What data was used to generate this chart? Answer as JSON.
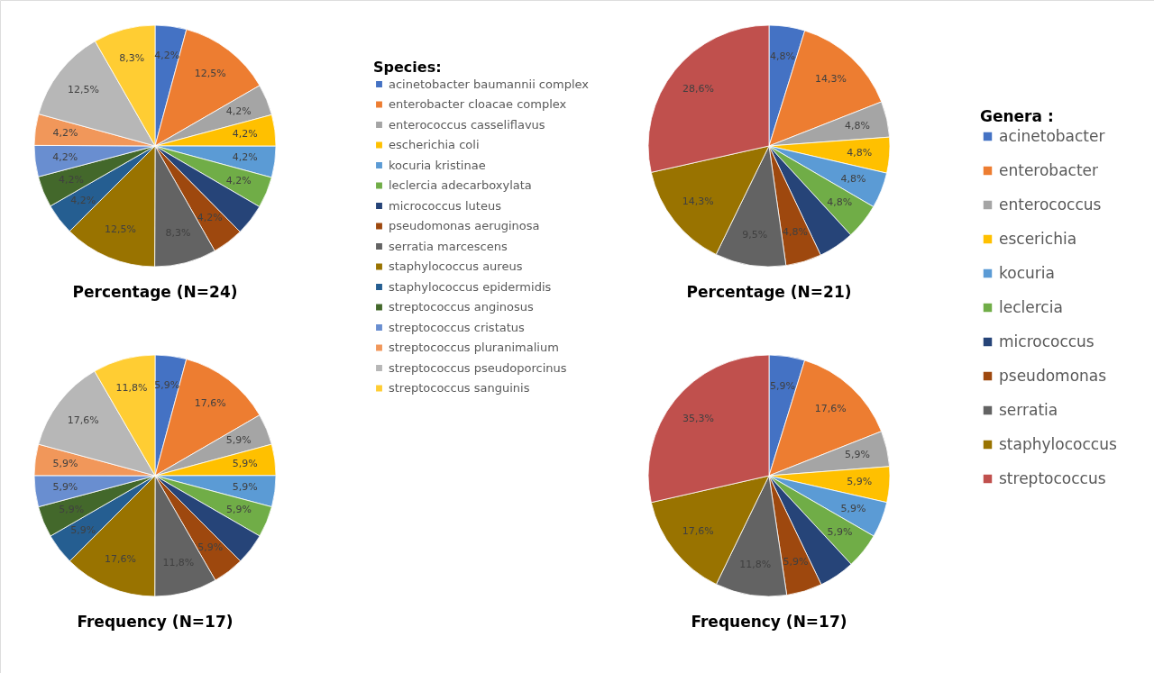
{
  "chart_data": [
    {
      "type": "pie",
      "title": "Percentage (N=24)",
      "legend_title": "Species:",
      "legend": "right",
      "categories": [
        "acinetobacter baumannii complex",
        "enterobacter cloacae complex",
        "enterococcus casseliflavus",
        "escherichia coli",
        "kocuria kristinae",
        "leclercia adecarboxylata",
        "micrococcus luteus",
        "pseudomonas aeruginosa",
        "serratia marcescens",
        "staphylococcus aureus",
        "staphylococcus epidermidis",
        "streptococcus anginosus",
        "streptococcus cristatus",
        "streptococcus pluranimalium",
        "streptococcus pseudoporcinus",
        "streptococcus sanguinis"
      ],
      "values": [
        4.2,
        12.5,
        4.2,
        4.2,
        4.2,
        4.2,
        4.2,
        4.2,
        8.3,
        12.5,
        4.2,
        4.2,
        4.2,
        4.2,
        12.5,
        8.3
      ],
      "value_labels": [
        "4,2%",
        "12,5%",
        "4,2%",
        "4,2%",
        "4,2%",
        "4,2%",
        null,
        "4,2%",
        "8,3%",
        "12,5%",
        "4,2%",
        "4,2%",
        "4,2%",
        "4,2%",
        "12,5%",
        "8,3%"
      ],
      "colors": [
        "#4472c4",
        "#ed7d31",
        "#a5a5a5",
        "#ffc000",
        "#5b9bd5",
        "#70ad47",
        "#264478",
        "#9e480e",
        "#636363",
        "#997300",
        "#255e91",
        "#43682b",
        "#698ed0",
        "#f1975a",
        "#b7b7b7",
        "#ffcd33"
      ]
    },
    {
      "type": "pie",
      "title": "Percentage (N=21)",
      "legend_title": "Genera :",
      "legend": "right",
      "categories": [
        "acinetobacter",
        "enterobacter",
        "enterococcus",
        "escerichia",
        "kocuria",
        "leclercia",
        "micrococcus",
        "pseudomonas",
        "serratia",
        "staphylococcus",
        "streptococcus"
      ],
      "values": [
        4.8,
        14.3,
        4.8,
        4.8,
        4.8,
        4.8,
        4.8,
        4.8,
        9.5,
        14.3,
        28.6
      ],
      "value_labels": [
        "4,8%",
        "14,3%",
        "4,8%",
        "4,8%",
        "4,8%",
        "4,8%",
        null,
        "4,8%",
        "9,5%",
        "14,3%",
        "28,6%"
      ],
      "colors": [
        "#4472c4",
        "#ed7d31",
        "#a5a5a5",
        "#ffc000",
        "#5b9bd5",
        "#70ad47",
        "#264478",
        "#9e480e",
        "#636363",
        "#997300",
        "#c0504d"
      ]
    },
    {
      "type": "pie",
      "title": "Frequency (N=17)",
      "categories": [
        null,
        null,
        null,
        null,
        null,
        null,
        null,
        null,
        null,
        null,
        null,
        null,
        null,
        null,
        null,
        null
      ],
      "values": [
        5.9,
        17.6,
        5.9,
        5.9,
        5.9,
        5.9,
        5.9,
        5.9,
        11.8,
        17.6,
        5.9,
        5.9,
        5.9,
        5.9,
        17.6,
        11.8
      ],
      "value_labels": [
        "5,9%",
        "17,6%",
        "5,9%",
        "5,9%",
        "5,9%",
        "5,9%",
        null,
        "5,9%",
        "11,8%",
        "17,6%",
        "5,9%",
        "5,9%",
        "5,9%",
        "5,9%",
        "17,6%",
        "11,8%"
      ],
      "colors": [
        "#4472c4",
        "#ed7d31",
        "#a5a5a5",
        "#ffc000",
        "#5b9bd5",
        "#70ad47",
        "#264478",
        "#9e480e",
        "#636363",
        "#997300",
        "#255e91",
        "#43682b",
        "#698ed0",
        "#f1975a",
        "#b7b7b7",
        "#ffcd33"
      ]
    },
    {
      "type": "pie",
      "title": "Frequency (N=17)",
      "categories": [
        null,
        null,
        null,
        null,
        null,
        null,
        null,
        null,
        null,
        null,
        null
      ],
      "values": [
        5.9,
        17.6,
        5.9,
        5.9,
        5.9,
        5.9,
        5.9,
        5.9,
        11.8,
        17.6,
        35.3
      ],
      "value_labels": [
        "5,9%",
        "17,6%",
        "5,9%",
        "5,9%",
        "5,9%",
        "5,9%",
        null,
        "5,9%",
        "11,8%",
        "17,6%",
        "35,3%"
      ],
      "colors": [
        "#4472c4",
        "#ed7d31",
        "#a5a5a5",
        "#ffc000",
        "#5b9bd5",
        "#70ad47",
        "#264478",
        "#9e480e",
        "#636363",
        "#997300",
        "#c0504d"
      ]
    }
  ]
}
